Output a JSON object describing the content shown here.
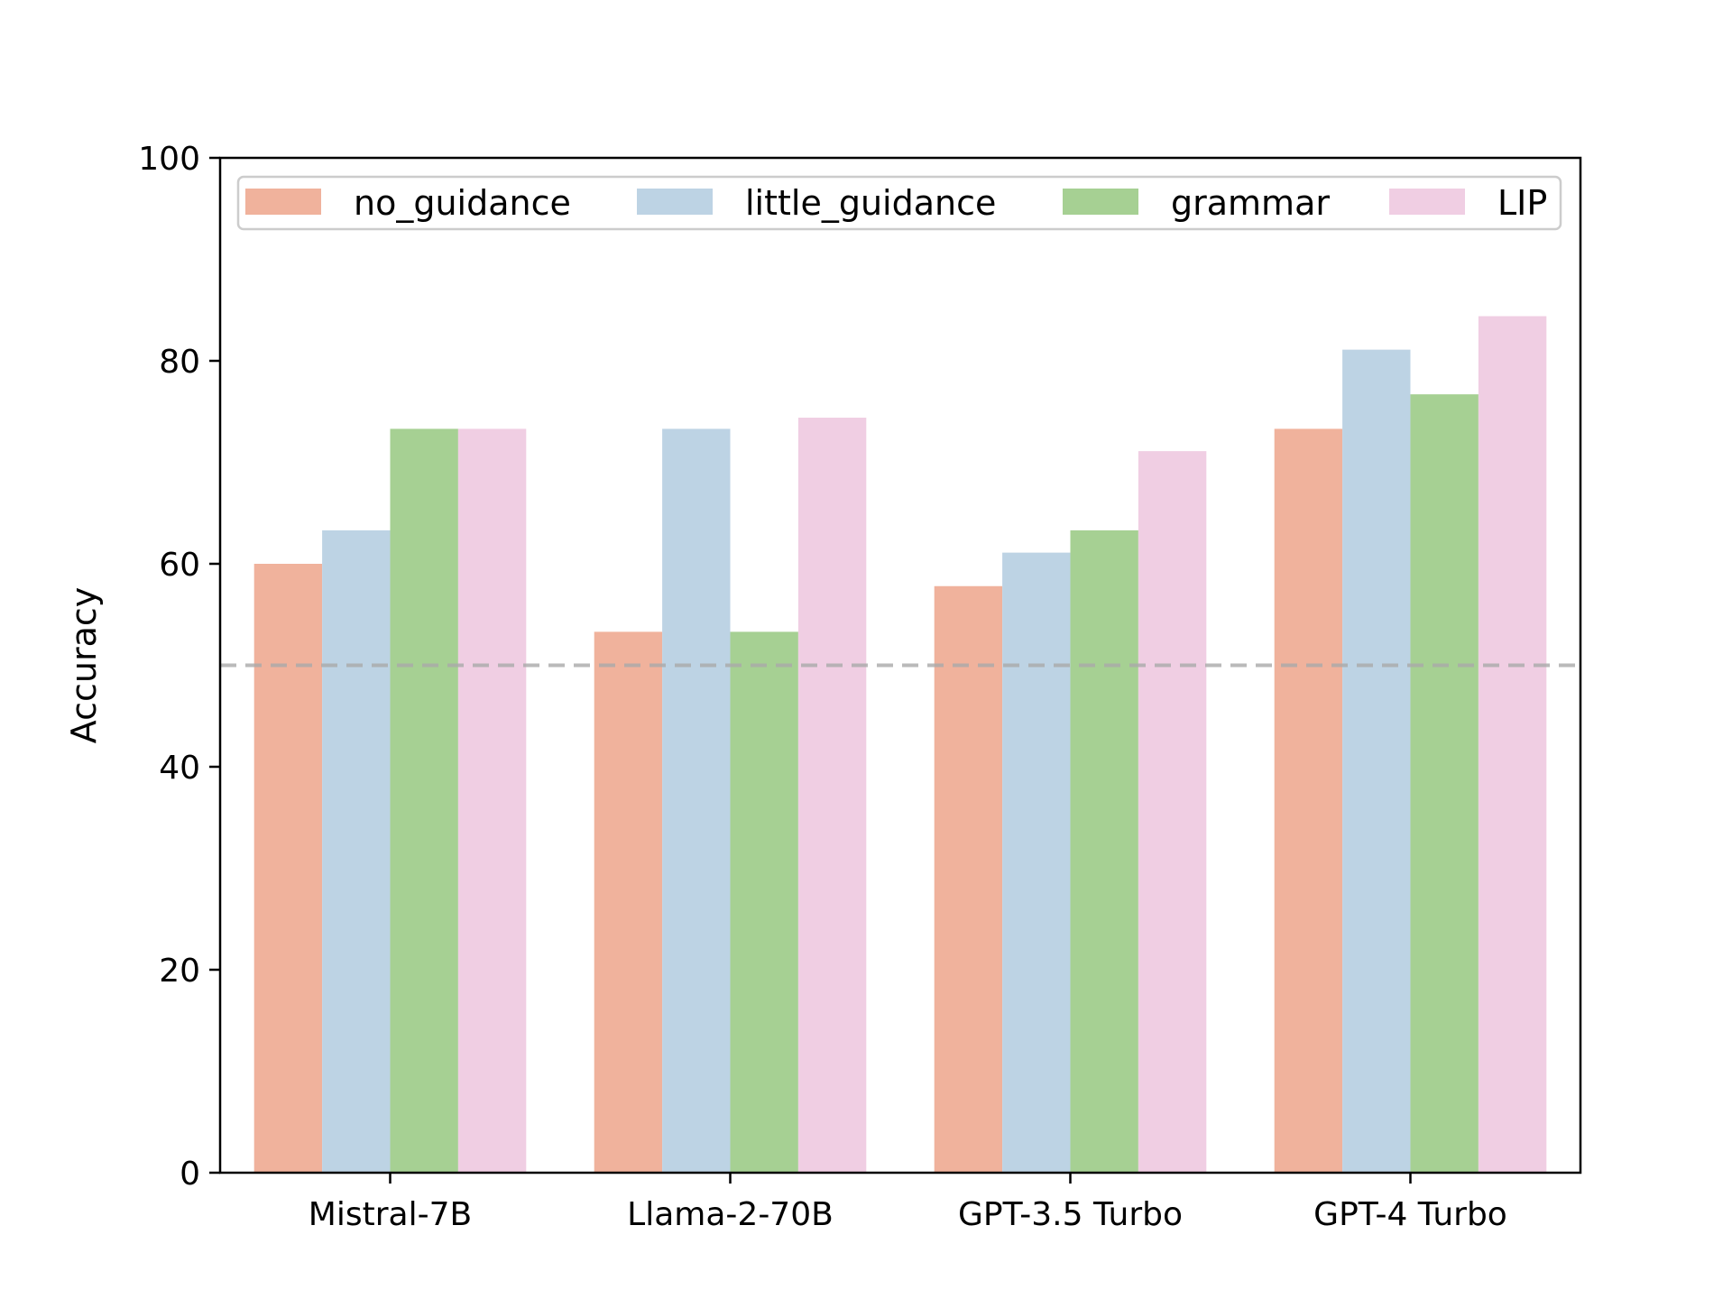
{
  "chart_data": {
    "type": "bar",
    "categories": [
      "Mistral-7B",
      "Llama-2-70B",
      "GPT-3.5 Turbo",
      "GPT-4 Turbo"
    ],
    "series": [
      {
        "name": "no_guidance",
        "color": "#f0b29c",
        "values": [
          60.0,
          53.3,
          57.8,
          73.3
        ]
      },
      {
        "name": "little_guidance",
        "color": "#bdd3e4",
        "values": [
          63.3,
          73.3,
          61.1,
          81.1
        ]
      },
      {
        "name": "grammar",
        "color": "#a6d093",
        "values": [
          73.3,
          53.3,
          63.3,
          76.7
        ]
      },
      {
        "name": "LIP",
        "color": "#f0cee3",
        "values": [
          73.3,
          74.4,
          71.1,
          84.4
        ]
      }
    ],
    "title": "",
    "xlabel": "",
    "ylabel": "Accuracy",
    "ylim": [
      0,
      100
    ],
    "yticks": [
      "0",
      "20",
      "40",
      "60",
      "80",
      "100"
    ],
    "reference_line": {
      "value": 50,
      "style": "dashed",
      "color": "#aaaaaa"
    },
    "legend": {
      "position": "top",
      "columns": 4
    },
    "grid": false
  }
}
